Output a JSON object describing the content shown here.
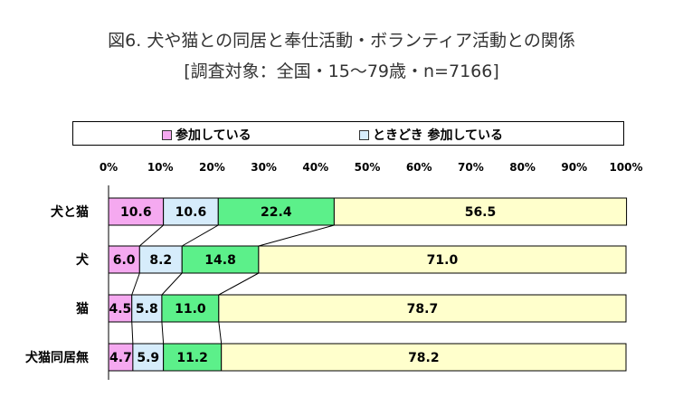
{
  "title_line1": "図6. 犬や猫との同居と奉仕活動・ボランティア活動との関係",
  "title_line2": "[調査対象：全国・15～79歳・n=7166]",
  "chart_data": {
    "type": "bar",
    "orientation": "horizontal",
    "stacked": "percent",
    "categories": [
      "犬と猫",
      "犬",
      "猫",
      "犬猫同居無"
    ],
    "series": [
      {
        "name": "参加している",
        "color": "#f5a9f0",
        "values": [
          10.6,
          6.0,
          4.5,
          4.7
        ]
      },
      {
        "name": "ときどき 参加している",
        "color": "#d6ecfb",
        "values": [
          10.6,
          8.2,
          5.8,
          5.9
        ]
      },
      {
        "name": "",
        "color": "#5cf08a",
        "values": [
          22.4,
          14.8,
          11.0,
          11.2
        ]
      },
      {
        "name": "",
        "color": "#ffffcc",
        "values": [
          56.5,
          71.0,
          78.7,
          78.2
        ]
      }
    ],
    "value_labels": [
      [
        "10.6",
        "10.6",
        "22.4",
        "56.5"
      ],
      [
        "6.0",
        "8.2",
        "14.8",
        "71.0"
      ],
      [
        "4.5",
        "5.8",
        "11.0",
        "78.7"
      ],
      [
        "4.7",
        "5.9",
        "11.2",
        "78.2"
      ]
    ],
    "xlim": [
      0,
      100
    ],
    "xticks": [
      "0%",
      "10%",
      "20%",
      "30%",
      "40%",
      "50%",
      "60%",
      "70%",
      "80%",
      "90%",
      "100%"
    ],
    "legend_position": "top",
    "connector_lines": true
  }
}
